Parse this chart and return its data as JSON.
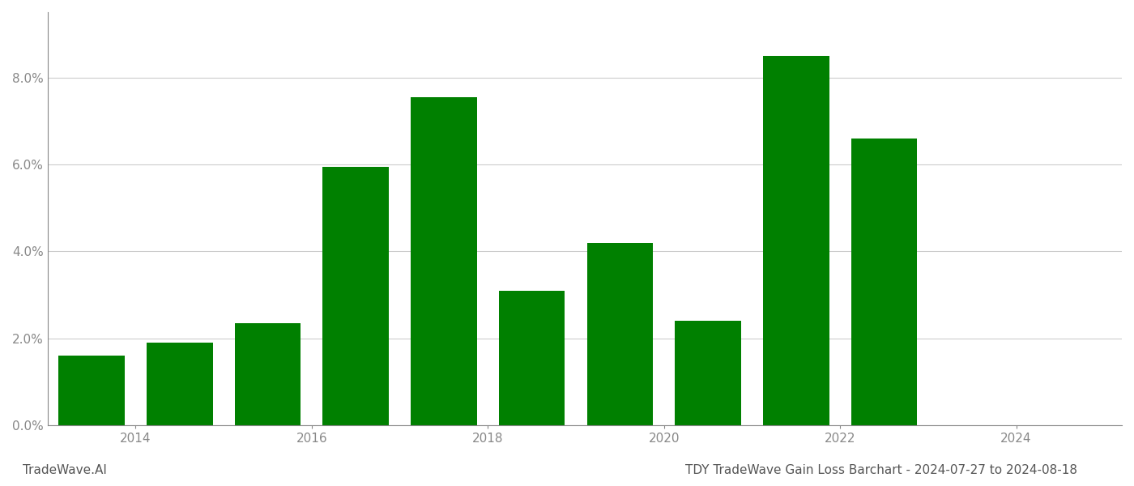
{
  "years": [
    2013.5,
    2014.5,
    2015.5,
    2016.5,
    2017.5,
    2018.5,
    2019.5,
    2020.5,
    2021.5,
    2022.5
  ],
  "values": [
    0.016,
    0.019,
    0.0235,
    0.0595,
    0.0755,
    0.031,
    0.042,
    0.024,
    0.085,
    0.066
  ],
  "bar_color": "#008000",
  "title": "TDY TradeWave Gain Loss Barchart - 2024-07-27 to 2024-08-18",
  "watermark": "TradeWave.AI",
  "ylim": [
    0,
    0.095
  ],
  "yticks": [
    0.0,
    0.02,
    0.04,
    0.06,
    0.08
  ],
  "xticks": [
    2014,
    2016,
    2018,
    2020,
    2022,
    2024
  ],
  "xlim": [
    2013.0,
    2025.2
  ],
  "background_color": "#ffffff",
  "grid_color": "#cccccc",
  "label_color": "#888888",
  "title_color": "#555555",
  "watermark_color": "#555555",
  "title_fontsize": 11,
  "label_fontsize": 11,
  "watermark_fontsize": 11,
  "bar_width": 0.75
}
